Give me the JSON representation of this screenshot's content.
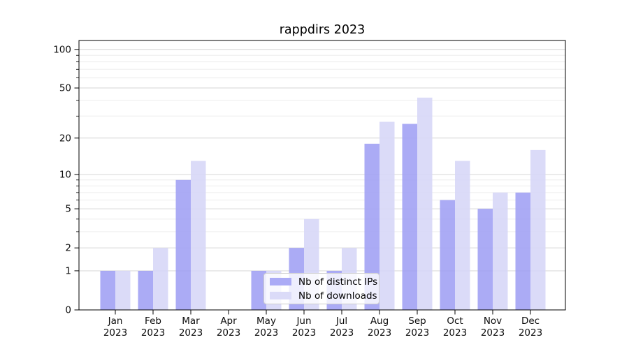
{
  "chart_data": {
    "type": "bar",
    "title": "rappdirs 2023",
    "categories": [
      "Jan",
      "Feb",
      "Mar",
      "Apr",
      "May",
      "Jun",
      "Jul",
      "Aug",
      "Sep",
      "Oct",
      "Nov",
      "Dec"
    ],
    "x_year_label": "2023",
    "series": [
      {
        "name": "Nb of distinct IPs",
        "color": "#9f9ff4",
        "values": [
          1,
          1,
          9,
          0,
          1,
          2,
          1,
          18,
          26,
          6,
          5,
          7
        ]
      },
      {
        "name": "Nb of downloads",
        "color": "#d6d6f7",
        "values": [
          1,
          2,
          13,
          0,
          1,
          4,
          2,
          27,
          42,
          13,
          7,
          16
        ]
      }
    ],
    "yscale": "log1p",
    "ylim": [
      0,
      118
    ],
    "yticks": [
      0,
      1,
      2,
      5,
      10,
      20,
      50,
      100
    ],
    "yticks_minor": [
      3,
      4,
      6,
      7,
      8,
      9,
      30,
      40,
      60,
      70,
      80,
      90
    ],
    "grid": "horizontal",
    "legend_position": "lower center",
    "legend_swatch_colors": [
      "#ababf6",
      "#dbdbf8"
    ],
    "colors": {
      "axis": "#000000",
      "tick_label": "#0d0d0d",
      "grid_major": "#d6d6d6",
      "grid_minor": "#ededed",
      "background": "#ffffff"
    }
  }
}
